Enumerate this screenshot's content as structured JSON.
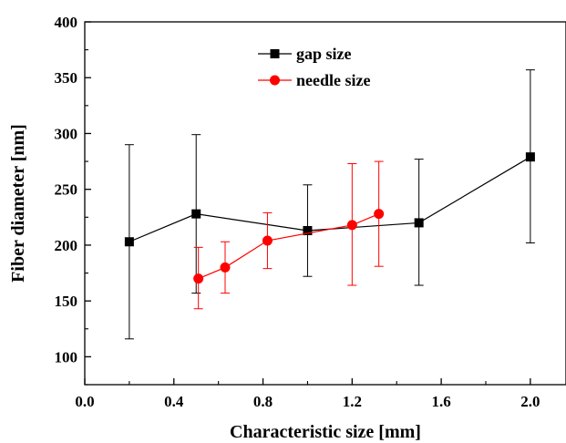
{
  "chart_data": {
    "type": "line",
    "xlabel": "Characteristic size [mm]",
    "ylabel": "Fiber diameter [nm]",
    "xlim": [
      0.0,
      2.16
    ],
    "ylim": [
      75,
      400
    ],
    "xticks": [
      0.0,
      0.4,
      0.8,
      1.2,
      1.6,
      2.0
    ],
    "xtick_labels": [
      "0.0",
      "0.4",
      "0.8",
      "1.2",
      "1.6",
      "2.0"
    ],
    "yticks": [
      100,
      150,
      200,
      250,
      300,
      350,
      400
    ],
    "ytick_labels": [
      "100",
      "150",
      "200",
      "250",
      "300",
      "350",
      "400"
    ],
    "grid": false,
    "legend_position": "top-center",
    "series": [
      {
        "name": "gap size",
        "color": "#000000",
        "marker": "square",
        "points": [
          {
            "x": 0.2,
            "y": 203,
            "err_low": 116,
            "err_high": 290
          },
          {
            "x": 0.5,
            "y": 228,
            "err_low": 157,
            "err_high": 299
          },
          {
            "x": 1.0,
            "y": 213,
            "err_low": 172,
            "err_high": 254
          },
          {
            "x": 1.5,
            "y": 220,
            "err_low": 164,
            "err_high": 277
          },
          {
            "x": 2.0,
            "y": 279,
            "err_low": 202,
            "err_high": 357
          }
        ]
      },
      {
        "name": "needle size",
        "color": "#ff0000",
        "marker": "circle",
        "points": [
          {
            "x": 0.51,
            "y": 170,
            "err_low": 143,
            "err_high": 198
          },
          {
            "x": 0.63,
            "y": 180,
            "err_low": 157,
            "err_high": 203
          },
          {
            "x": 0.82,
            "y": 204,
            "err_low": 179,
            "err_high": 229
          },
          {
            "x": 1.2,
            "y": 218,
            "err_low": 164,
            "err_high": 273
          },
          {
            "x": 1.32,
            "y": 228,
            "err_low": 181,
            "err_high": 275
          }
        ]
      }
    ]
  }
}
